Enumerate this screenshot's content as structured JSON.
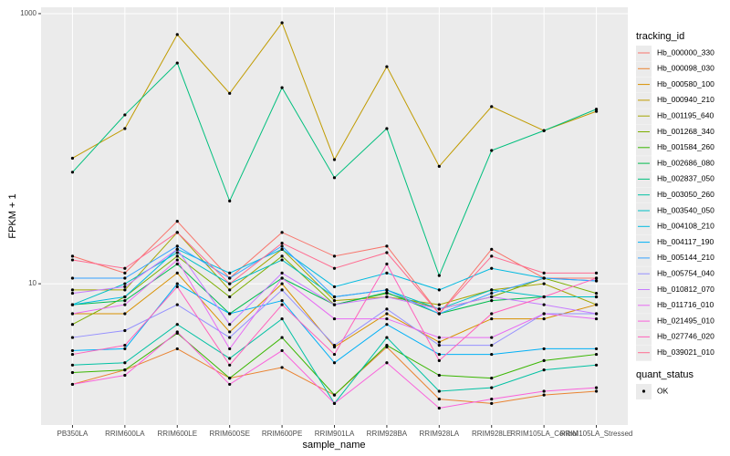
{
  "chart_data": {
    "type": "line",
    "x_label": "sample_name",
    "y_label": "FPKM + 1",
    "legend_title": "tracking_id",
    "shape_legend": {
      "title": "quant_status",
      "entries": [
        "OK"
      ]
    },
    "log_y": true,
    "grid": true,
    "background": "#EBEBEB",
    "point_color": "#000000",
    "ylim": [
      0.9,
      1114
    ],
    "yticks": [
      10,
      1000
    ],
    "categories": [
      "PB350LA",
      "RRIM600LA",
      "RRIM600LE",
      "RRIM600SE",
      "RRIM600PE",
      "RRIM901LA",
      "RRIM928BA",
      "RRIM928LA",
      "RRIM928LE",
      "RRIM105LA_Control",
      "RRIM105LA_Stressed"
    ],
    "series": [
      {
        "name": "Hb_000000_330",
        "color": "#F8766D",
        "values": [
          16,
          12,
          29,
          11,
          24,
          16,
          19,
          6,
          18,
          11,
          11
        ]
      },
      {
        "name": "Hb_000098_030",
        "color": "#EA8331",
        "values": [
          1.8,
          2.3,
          3.3,
          2.0,
          2.4,
          1.5,
          3.4,
          1.4,
          1.3,
          1.5,
          1.6
        ]
      },
      {
        "name": "Hb_000580_100",
        "color": "#D89000",
        "values": [
          6,
          6,
          12,
          4.4,
          10,
          3.4,
          6,
          3.7,
          5.5,
          5.5,
          7
        ]
      },
      {
        "name": "Hb_000940_210",
        "color": "#C09B00",
        "values": [
          85,
          141,
          700,
          257,
          855,
          83,
          405,
          74,
          205,
          136,
          189
        ]
      },
      {
        "name": "Hb_001195_640",
        "color": "#A3A500",
        "values": [
          9,
          9,
          24,
          9,
          18,
          7.5,
          8,
          7,
          9,
          10,
          7
        ]
      },
      {
        "name": "Hb_001268_340",
        "color": "#7CAE00",
        "values": [
          5,
          8,
          16,
          8,
          16,
          7,
          8.5,
          6.5,
          8,
          11,
          8.5
        ]
      },
      {
        "name": "Hb_001584_260",
        "color": "#39B600",
        "values": [
          2.2,
          2.3,
          4.3,
          2.0,
          4.0,
          1.5,
          3.5,
          2.1,
          2.0,
          2.7,
          3.0
        ]
      },
      {
        "name": "Hb_002686_080",
        "color": "#00BB4E",
        "values": [
          7,
          7.5,
          14,
          6,
          11,
          7,
          8.6,
          6,
          7.5,
          8,
          8
        ]
      },
      {
        "name": "Hb_002837_050",
        "color": "#00BF7D",
        "values": [
          67,
          178,
          431,
          41,
          283,
          61,
          141,
          11.5,
          97,
          136,
          196
        ]
      },
      {
        "name": "Hb_003050_260",
        "color": "#00C1A3",
        "values": [
          2.5,
          2.6,
          5,
          2.8,
          5.5,
          1.3,
          4,
          1.6,
          1.7,
          2.3,
          2.5
        ]
      },
      {
        "name": "Hb_003540_050",
        "color": "#00BFC4",
        "values": [
          7,
          10,
          17,
          10,
          15,
          8,
          9,
          6.5,
          9,
          8,
          8
        ]
      },
      {
        "name": "Hb_004108_210",
        "color": "#00BAE0",
        "values": [
          7,
          8,
          18,
          12,
          18,
          9.5,
          12,
          9,
          13,
          11,
          10.5
        ]
      },
      {
        "name": "Hb_004117_190",
        "color": "#00B0F6",
        "values": [
          3.2,
          3.3,
          10,
          6,
          7.5,
          2.6,
          5,
          3,
          3,
          3.3,
          3.3
        ]
      },
      {
        "name": "Hb_005144_210",
        "color": "#35A2FF",
        "values": [
          11,
          11,
          19,
          11,
          19,
          8,
          9,
          6,
          8.5,
          11,
          10.5
        ]
      },
      {
        "name": "Hb_005754_040",
        "color": "#9590FF",
        "values": [
          4,
          4.5,
          7,
          4,
          9,
          3.5,
          6.5,
          3.5,
          3.5,
          6,
          6
        ]
      },
      {
        "name": "Hb_010812_070",
        "color": "#C77CFF",
        "values": [
          8.5,
          9.5,
          18,
          5,
          12,
          7,
          8,
          6.5,
          8,
          7,
          6
        ]
      },
      {
        "name": "Hb_011716_010",
        "color": "#E76BF3",
        "values": [
          6,
          7,
          15,
          3.3,
          11,
          5.5,
          5.5,
          4,
          4,
          6,
          5.5
        ]
      },
      {
        "name": "Hb_021495_010",
        "color": "#FA62DB",
        "values": [
          1.8,
          2.1,
          4.4,
          1.8,
          3.2,
          1.3,
          2.6,
          1.2,
          1.4,
          1.6,
          1.7
        ]
      },
      {
        "name": "Hb_027746_020",
        "color": "#FF62BC",
        "values": [
          3,
          3.5,
          9.5,
          2.5,
          7,
          3,
          14,
          2.7,
          6,
          8,
          11
        ]
      },
      {
        "name": "Hb_039021_010",
        "color": "#FF6C91",
        "values": [
          15,
          13,
          24,
          10,
          20,
          13,
          17,
          6,
          16,
          12,
          12
        ]
      }
    ]
  }
}
